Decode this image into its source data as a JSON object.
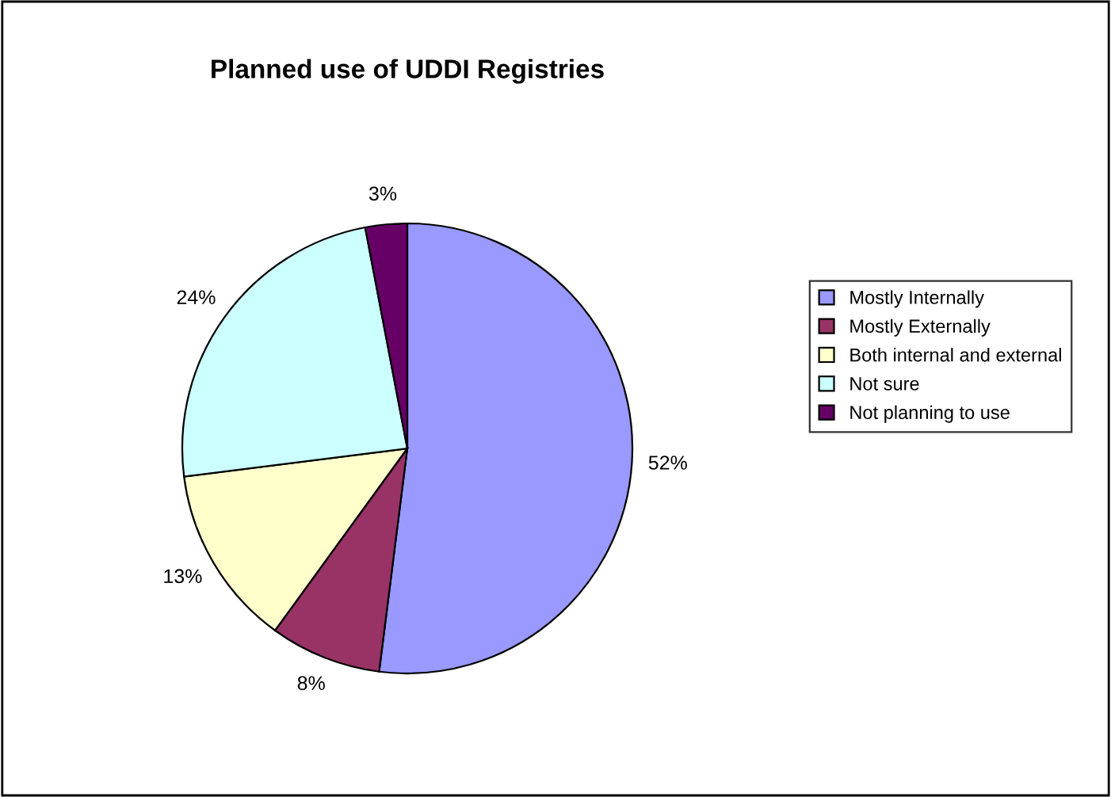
{
  "chart_data": {
    "type": "pie",
    "title": "Planned use of UDDI Registries",
    "categories": [
      "Mostly Internally",
      "Mostly Externally",
      "Both internal and external",
      "Not sure",
      "Not planning to use"
    ],
    "values": [
      52,
      8,
      13,
      24,
      3
    ],
    "value_labels": [
      "52%",
      "8%",
      "13%",
      "24%",
      "3%"
    ],
    "colors": [
      "#9999ff",
      "#993366",
      "#ffffcc",
      "#ccffff",
      "#660066"
    ],
    "legend": "right"
  }
}
